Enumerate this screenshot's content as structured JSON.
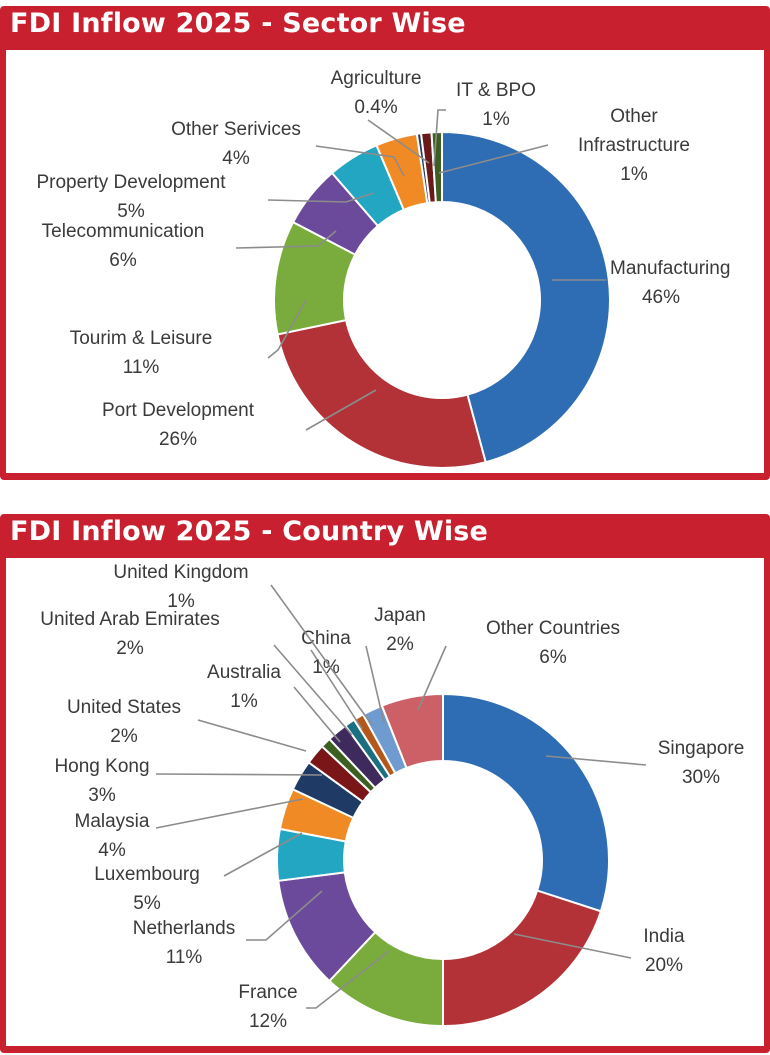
{
  "charts": {
    "sector": {
      "title": "FDI Inflow 2025 - Sector Wise"
    },
    "country": {
      "title": "FDI Inflow 2025 - Country Wise"
    }
  },
  "chart_data": [
    {
      "type": "pie",
      "style": "donut",
      "title": "FDI Inflow 2025 - Sector Wise",
      "slices": [
        {
          "label": "Manufacturing",
          "value": 46,
          "value_label": "46%",
          "color": "#2e6db4"
        },
        {
          "label": "Port Development",
          "value": 26,
          "value_label": "26%",
          "color": "#b23238"
        },
        {
          "label": "Tourim & Leisure",
          "value": 11,
          "value_label": "11%",
          "color": "#7aab3d"
        },
        {
          "label": "Telecommunication",
          "value": 6,
          "value_label": "6%",
          "color": "#6c4a9b"
        },
        {
          "label": "Property Development",
          "value": 5,
          "value_label": "5%",
          "color": "#22a6c2"
        },
        {
          "label": "Other Serivices",
          "value": 4,
          "value_label": "4%",
          "color": "#f08a24"
        },
        {
          "label": "Agriculture",
          "value": 0.4,
          "value_label": "0.4%",
          "color": "#1f3a64"
        },
        {
          "label": "IT & BPO",
          "value": 1,
          "value_label": "1%",
          "color": "#6b1a1a"
        },
        {
          "label": "Other Infrastructure",
          "value": 1,
          "value_label": "1%",
          "color": "#3d5f22"
        }
      ]
    },
    {
      "type": "pie",
      "style": "donut",
      "title": "FDI Inflow 2025 - Country Wise",
      "slices": [
        {
          "label": "Singapore",
          "value": 30,
          "value_label": "30%",
          "color": "#2e6db4"
        },
        {
          "label": "India",
          "value": 20,
          "value_label": "20%",
          "color": "#b23238"
        },
        {
          "label": "France",
          "value": 12,
          "value_label": "12%",
          "color": "#7aab3d"
        },
        {
          "label": "Netherlands",
          "value": 11,
          "value_label": "11%",
          "color": "#6c4a9b"
        },
        {
          "label": "Luxembourg",
          "value": 5,
          "value_label": "5%",
          "color": "#22a6c2"
        },
        {
          "label": "Malaysia",
          "value": 4,
          "value_label": "4%",
          "color": "#f08a24"
        },
        {
          "label": "Hong Kong",
          "value": 3,
          "value_label": "3%",
          "color": "#1f3a64"
        },
        {
          "label": "United States",
          "value": 2,
          "value_label": "2%",
          "color": "#7a1518"
        },
        {
          "label": "Australia",
          "value": 1,
          "value_label": "1%",
          "color": "#3d5f22"
        },
        {
          "label": "United Arab Emirates",
          "value": 2,
          "value_label": "2%",
          "color": "#3f2a5e"
        },
        {
          "label": "China",
          "value": 1,
          "value_label": "1%",
          "color": "#1a6f80"
        },
        {
          "label": "United Kingdom",
          "value": 1,
          "value_label": "1%",
          "color": "#b3581a"
        },
        {
          "label": "Japan",
          "value": 2,
          "value_label": "2%",
          "color": "#6f9bd1"
        },
        {
          "label": "Other Countries",
          "value": 6,
          "value_label": "6%",
          "color": "#cd5f66"
        }
      ]
    }
  ]
}
